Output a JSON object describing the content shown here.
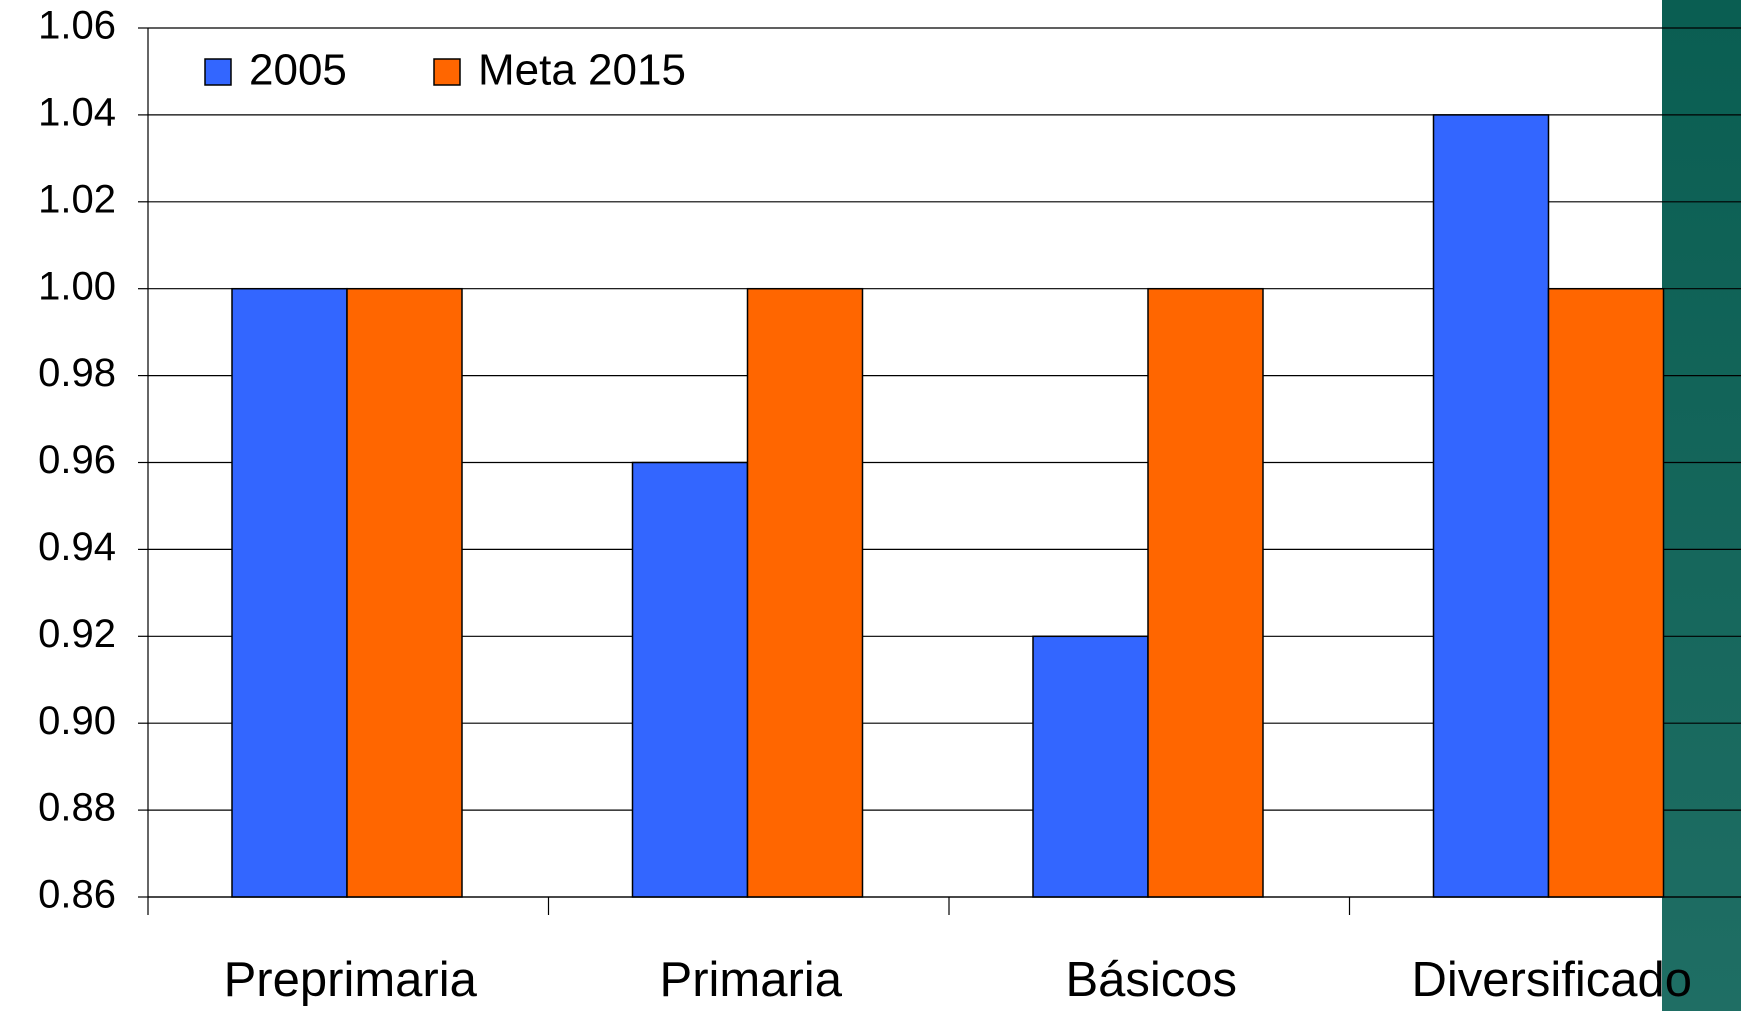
{
  "chart_data": {
    "type": "bar",
    "categories": [
      "Preprimaria",
      "Primaria",
      "Básicos",
      "Diversificado"
    ],
    "series": [
      {
        "name": "2005",
        "color": "#3366ff",
        "values": [
          1.0,
          0.96,
          0.92,
          1.04
        ]
      },
      {
        "name": "Meta 2015",
        "color": "#ff6600",
        "values": [
          1.0,
          1.0,
          1.0,
          1.0
        ]
      }
    ],
    "ylim": [
      0.86,
      1.06
    ],
    "yticks": [
      0.86,
      0.88,
      {
        "value": 0.9,
        "label": "0.90"
      },
      0.92,
      0.94,
      0.96,
      0.98,
      {
        "value": 1,
        "label": "1.00"
      },
      1.02,
      1.04,
      1.06
    ],
    "grid": true,
    "legend": "top-left"
  }
}
